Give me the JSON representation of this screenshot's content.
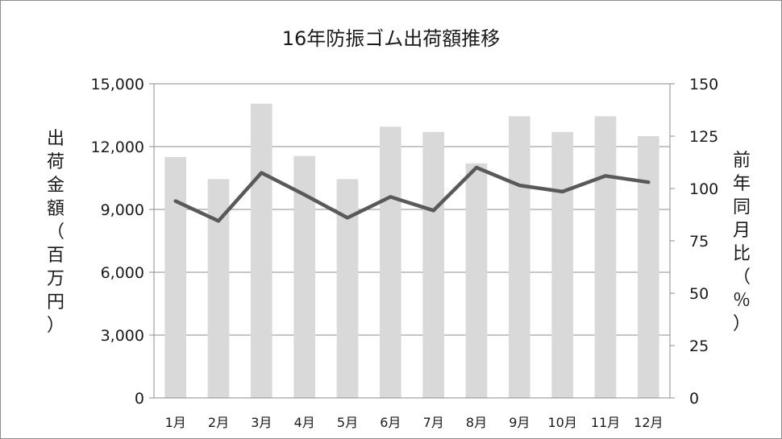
{
  "chart_data": {
    "type": "bar",
    "title": "16年防振ゴム出荷額推移",
    "categories": [
      "1月",
      "2月",
      "3月",
      "4月",
      "5月",
      "6月",
      "7月",
      "8月",
      "9月",
      "10月",
      "11月",
      "12月"
    ],
    "series": [
      {
        "type": "bar",
        "axis": "left",
        "color": "#d9d9d9",
        "values": [
          11500,
          10450,
          14050,
          11550,
          10450,
          12950,
          12700,
          11200,
          13450,
          12700,
          13450,
          12500
        ]
      },
      {
        "type": "line",
        "axis": "right",
        "color": "#595959",
        "values": [
          94,
          84.5,
          107.5,
          97,
          86,
          96,
          89.5,
          110,
          101.5,
          98.5,
          106,
          103
        ]
      }
    ],
    "ylabel": "出荷金額（百万円）",
    "ylabel_chars": [
      "出",
      "荷",
      "金",
      "額",
      "（",
      "百",
      "万",
      "円",
      "）"
    ],
    "y2label": "前年同月比（％）",
    "y2label_chars": [
      "前",
      "年",
      "同",
      "月",
      "比",
      "（",
      "％",
      "）"
    ],
    "ylim": [
      0,
      15000
    ],
    "y2lim": [
      0,
      150
    ],
    "yticks": [
      "0",
      "3,000",
      "6,000",
      "9,000",
      "12,000",
      "15,000"
    ],
    "y2ticks": [
      "0",
      "25",
      "50",
      "75",
      "100",
      "125",
      "150"
    ],
    "grid": true,
    "legend": "none"
  }
}
